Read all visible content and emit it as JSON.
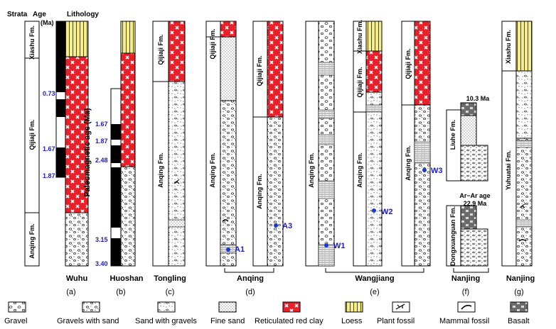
{
  "header": {
    "strata_label": "Strata",
    "age_label": "Age",
    "age_unit": "(Ma)",
    "lithology_label": "Lithology",
    "paleomag_label": "Paleomagnetic age (Ma)"
  },
  "formations": {
    "xiashu": "Xiashu Fm.",
    "qijiaji": "Qijiaji Fm.",
    "anqing": "Anqing Fm.",
    "liuhe": "Liuhe Fm.",
    "dongxuanguan": "Dongxuanguan Fm.",
    "yuhuatai": "Yuhuatai Fm."
  },
  "ages": {
    "wuhu": [
      "0.73",
      "1.67",
      "1.87"
    ],
    "huoshan": [
      "1.67",
      "1.87",
      "2.48",
      "3.15",
      "3.40"
    ],
    "liuhe_basalt": "10.3 Ma",
    "dongx_title": "Ar−Ar age",
    "dongx_basalt": "22.9 Ma"
  },
  "samples": [
    "A1",
    "A3",
    "W1",
    "W2",
    "W3"
  ],
  "sites": {
    "a": "Wuhu",
    "b": "Huoshan",
    "c": "Tongling",
    "de": "Anqing",
    "e": "Wangjiang",
    "f": "Nanjing",
    "g": "Nanjing"
  },
  "panel_letters": [
    "(a)",
    "(b)",
    "(c)",
    "(d)",
    "(e)",
    "(f)",
    "(g)"
  ],
  "legend": [
    {
      "key": "gravel",
      "label": "Gravel"
    },
    {
      "key": "gravel-sand",
      "label": "Gravels with sand"
    },
    {
      "key": "sand-gravel",
      "label": "Sand with gravels"
    },
    {
      "key": "fine-sand",
      "label": "Fine sand"
    },
    {
      "key": "red-clay",
      "label": "Reticulated red clay"
    },
    {
      "key": "loess",
      "label": "Loess"
    },
    {
      "key": "plant",
      "label": "Plant fossil"
    },
    {
      "key": "mammal",
      "label": "Mammal fossil"
    },
    {
      "key": "basalt",
      "label": "Basalt"
    }
  ],
  "colors": {
    "red_clay": "#e8202a",
    "loess": "#f5ee8a",
    "sample_dot": "#1a3ad6",
    "age_text": "#1a1acc"
  }
}
